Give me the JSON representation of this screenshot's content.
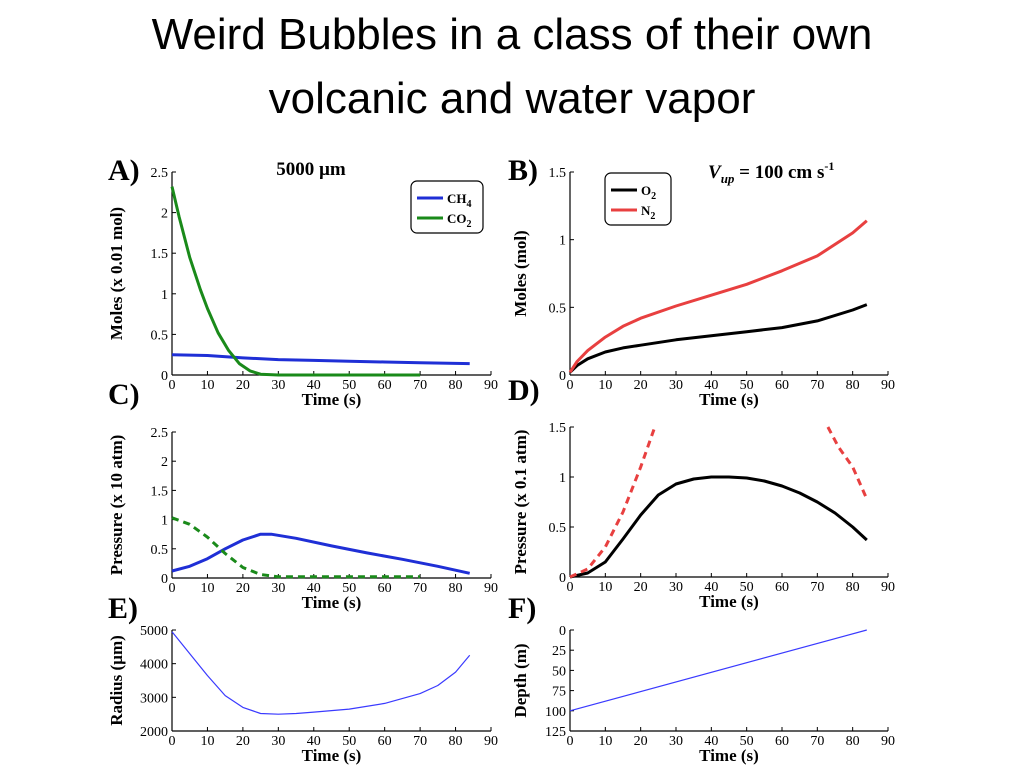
{
  "slide": {
    "title_line1": "Weird Bubbles in a class of their own",
    "title_line2": "volcanic and water vapor"
  },
  "chart_data": [
    {
      "panel": "A)",
      "type": "line",
      "annotation": "5000 µm",
      "xlabel": "Time (s)",
      "ylabel": "Moles (x 0.01 mol)",
      "xlim": [
        0,
        90
      ],
      "ylim": [
        0,
        2.5
      ],
      "xticks": [
        "0",
        "10",
        "20",
        "30",
        "40",
        "50",
        "60",
        "70",
        "80",
        "90"
      ],
      "yticks": [
        "0",
        "0.5",
        "1",
        "1.5",
        "2",
        "2.5"
      ],
      "legend_position": "top-right",
      "series": [
        {
          "name": "CH",
          "sub": "4",
          "color": "#1f2fd6",
          "dash": "solid",
          "x": [
            0,
            10,
            20,
            30,
            40,
            50,
            60,
            70,
            84
          ],
          "y": [
            0.25,
            0.24,
            0.21,
            0.19,
            0.18,
            0.17,
            0.16,
            0.15,
            0.14
          ]
        },
        {
          "name": "CO",
          "sub": "2",
          "color": "#1a8a1a",
          "dash": "solid",
          "x": [
            0,
            2,
            5,
            8,
            10,
            13,
            16,
            19,
            22,
            25,
            30,
            40,
            50,
            60,
            70
          ],
          "y": [
            2.32,
            1.95,
            1.45,
            1.05,
            0.82,
            0.52,
            0.3,
            0.14,
            0.05,
            0.01,
            0,
            0,
            0,
            0,
            0
          ]
        }
      ]
    },
    {
      "panel": "B)",
      "type": "line",
      "annotation_main": "V",
      "annotation_sub": "up",
      "annotation_rest": " = 100 cm s",
      "annotation_sup": "-1",
      "xlabel": "Time (s)",
      "ylabel": "Moles (mol)",
      "xlim": [
        0,
        90
      ],
      "ylim": [
        0,
        1.5
      ],
      "xticks": [
        "0",
        "10",
        "20",
        "30",
        "40",
        "50",
        "60",
        "70",
        "80",
        "90"
      ],
      "yticks": [
        "0",
        "0.5",
        "1",
        "1.5"
      ],
      "legend_position": "top-left",
      "series": [
        {
          "name": "O",
          "sub": "2",
          "color": "#000000",
          "dash": "solid",
          "x": [
            0,
            2,
            5,
            10,
            15,
            20,
            30,
            40,
            50,
            60,
            70,
            80,
            84
          ],
          "y": [
            0.02,
            0.07,
            0.12,
            0.17,
            0.2,
            0.22,
            0.26,
            0.29,
            0.32,
            0.35,
            0.4,
            0.48,
            0.52
          ]
        },
        {
          "name": "N",
          "sub": "2",
          "color": "#e84040",
          "dash": "solid",
          "x": [
            0,
            2,
            5,
            10,
            15,
            20,
            30,
            40,
            50,
            60,
            70,
            80,
            84
          ],
          "y": [
            0.02,
            0.1,
            0.18,
            0.28,
            0.36,
            0.42,
            0.51,
            0.59,
            0.67,
            0.77,
            0.88,
            1.05,
            1.14
          ]
        }
      ]
    },
    {
      "panel": "C)",
      "type": "line",
      "xlabel": "Time (s)",
      "ylabel": "Pressure (x 10 atm)",
      "xlim": [
        0,
        90
      ],
      "ylim": [
        0,
        2.5
      ],
      "xticks": [
        "0",
        "10",
        "20",
        "30",
        "40",
        "50",
        "60",
        "70",
        "80",
        "90"
      ],
      "yticks": [
        "0",
        "0.5",
        "1",
        "1.5",
        "2",
        "2.5"
      ],
      "series": [
        {
          "name": "",
          "color": "#1f2fd6",
          "dash": "solid",
          "x": [
            0,
            5,
            10,
            15,
            20,
            25,
            28,
            35,
            45,
            55,
            65,
            75,
            84
          ],
          "y": [
            0.12,
            0.2,
            0.33,
            0.5,
            0.65,
            0.75,
            0.75,
            0.68,
            0.55,
            0.43,
            0.32,
            0.2,
            0.08
          ]
        },
        {
          "name": "",
          "color": "#1a8a1a",
          "dash": "dash",
          "x": [
            0,
            5,
            10,
            15,
            20,
            25,
            30,
            40,
            50,
            60,
            70
          ],
          "y": [
            1.03,
            0.92,
            0.7,
            0.42,
            0.18,
            0.06,
            0.02,
            0.02,
            0.02,
            0.02,
            0.02
          ]
        }
      ]
    },
    {
      "panel": "D)",
      "type": "line",
      "xlabel": "Time (s)",
      "ylabel": "Pressure (x 0.1 atm)",
      "xlim": [
        0,
        90
      ],
      "ylim": [
        0,
        1.5
      ],
      "xticks": [
        "0",
        "10",
        "20",
        "30",
        "40",
        "50",
        "60",
        "70",
        "80",
        "90"
      ],
      "yticks": [
        "0",
        "0.5",
        "1",
        "1.5"
      ],
      "series": [
        {
          "name": "",
          "color": "#000000",
          "dash": "solid",
          "x": [
            0,
            5,
            10,
            15,
            20,
            25,
            30,
            35,
            40,
            45,
            50,
            55,
            60,
            65,
            70,
            75,
            80,
            84
          ],
          "y": [
            0.0,
            0.04,
            0.15,
            0.38,
            0.62,
            0.82,
            0.93,
            0.98,
            1.0,
            1.0,
            0.99,
            0.96,
            0.91,
            0.84,
            0.75,
            0.64,
            0.5,
            0.37
          ]
        },
        {
          "name": "",
          "color": "#e84040",
          "dash": "dash",
          "x": [
            0,
            5,
            10,
            15,
            20,
            24
          ],
          "y": [
            0.0,
            0.08,
            0.3,
            0.65,
            1.1,
            1.5
          ]
        },
        {
          "name": "",
          "color": "#e84040",
          "dash": "dash",
          "x": [
            73,
            76,
            80,
            84
          ],
          "y": [
            1.5,
            1.3,
            1.1,
            0.78
          ]
        }
      ]
    },
    {
      "panel": "E)",
      "type": "line",
      "xlabel": "Time (s)",
      "ylabel": "Radius (µm)",
      "xlim": [
        0,
        90
      ],
      "ylim": [
        2000,
        5000
      ],
      "xticks": [
        "0",
        "10",
        "20",
        "30",
        "40",
        "50",
        "60",
        "70",
        "80",
        "90"
      ],
      "yticks": [
        "2000",
        "3000",
        "4000",
        "5000"
      ],
      "series": [
        {
          "name": "",
          "color": "#3a3aff",
          "dash": "thin",
          "x": [
            0,
            5,
            10,
            15,
            20,
            25,
            30,
            35,
            40,
            50,
            60,
            70,
            75,
            80,
            84
          ],
          "y": [
            4950,
            4300,
            3650,
            3050,
            2700,
            2520,
            2500,
            2520,
            2560,
            2650,
            2820,
            3110,
            3350,
            3750,
            4250
          ]
        }
      ]
    },
    {
      "panel": "F)",
      "type": "line",
      "xlabel": "Time (s)",
      "ylabel": "Depth (m)",
      "xlim": [
        0,
        90
      ],
      "ylim": [
        125,
        0
      ],
      "xticks": [
        "0",
        "10",
        "20",
        "30",
        "40",
        "50",
        "60",
        "70",
        "80",
        "90"
      ],
      "yticks": [
        "0",
        "25",
        "50",
        "75",
        "100",
        "125"
      ],
      "series": [
        {
          "name": "",
          "color": "#3a3aff",
          "dash": "thin",
          "x": [
            0,
            84
          ],
          "y": [
            100,
            0
          ]
        }
      ]
    }
  ]
}
